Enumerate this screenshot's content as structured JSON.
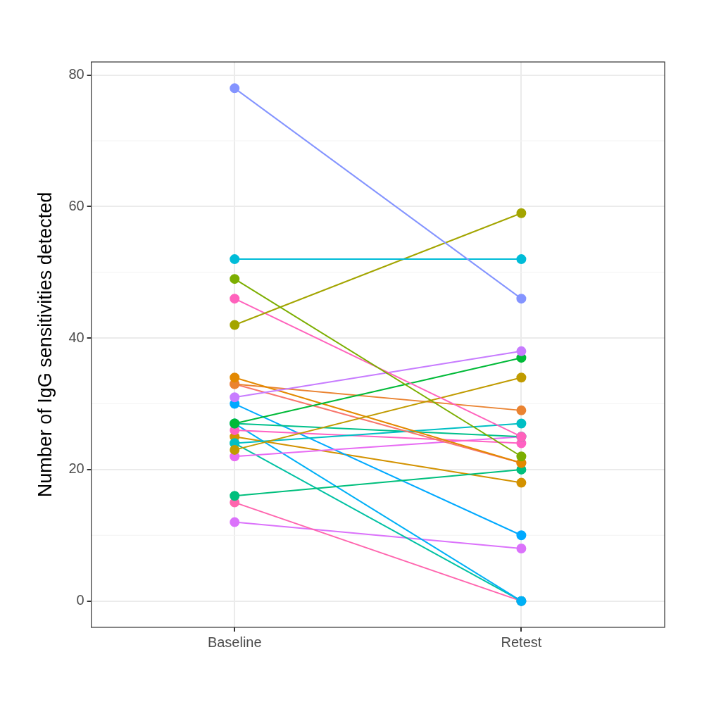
{
  "chart_data": {
    "type": "line",
    "y_label": "Number of IgG sensitivities detected",
    "categories": [
      "Baseline",
      "Retest"
    ],
    "ylim": [
      -4,
      82
    ],
    "yticks": [
      0,
      20,
      40,
      60,
      80
    ],
    "grid": true,
    "marker": "circle",
    "series": [
      {
        "color": "#8494FF",
        "values": [
          78,
          46
        ]
      },
      {
        "color": "#00BCD8",
        "values": [
          52,
          52
        ]
      },
      {
        "color": "#7CAE00",
        "values": [
          49,
          22
        ]
      },
      {
        "color": "#A3A500",
        "values": [
          42,
          59
        ]
      },
      {
        "color": "#FF62BC",
        "values": [
          46,
          25
        ]
      },
      {
        "color": "#C77CFF",
        "values": [
          31,
          38
        ]
      },
      {
        "color": "#00BA38",
        "values": [
          27,
          37
        ]
      },
      {
        "color": "#C09B00",
        "values": [
          23,
          34
        ]
      },
      {
        "color": "#E38900",
        "values": [
          34,
          21
        ]
      },
      {
        "color": "#EA8331",
        "values": [
          33,
          29
        ]
      },
      {
        "color": "#F8766D",
        "values": [
          33,
          21
        ]
      },
      {
        "color": "#00BFC4",
        "values": [
          24,
          27
        ]
      },
      {
        "color": "#00C08B",
        "values": [
          27,
          25
        ]
      },
      {
        "color": "#FF61C3",
        "values": [
          26,
          24
        ]
      },
      {
        "color": "#E76BF3",
        "values": [
          22,
          25
        ]
      },
      {
        "color": "#00BF7D",
        "values": [
          16,
          20
        ]
      },
      {
        "color": "#00A9FF",
        "values": [
          30,
          10
        ]
      },
      {
        "color": "#00B0F6",
        "values": [
          27,
          0
        ]
      },
      {
        "color": "#00C1A3",
        "values": [
          24,
          0
        ]
      },
      {
        "color": "#FF65AE",
        "values": [
          15,
          0
        ]
      },
      {
        "color": "#DB72FB",
        "values": [
          12,
          8
        ]
      },
      {
        "color": "#D39200",
        "values": [
          25,
          18
        ]
      }
    ]
  }
}
